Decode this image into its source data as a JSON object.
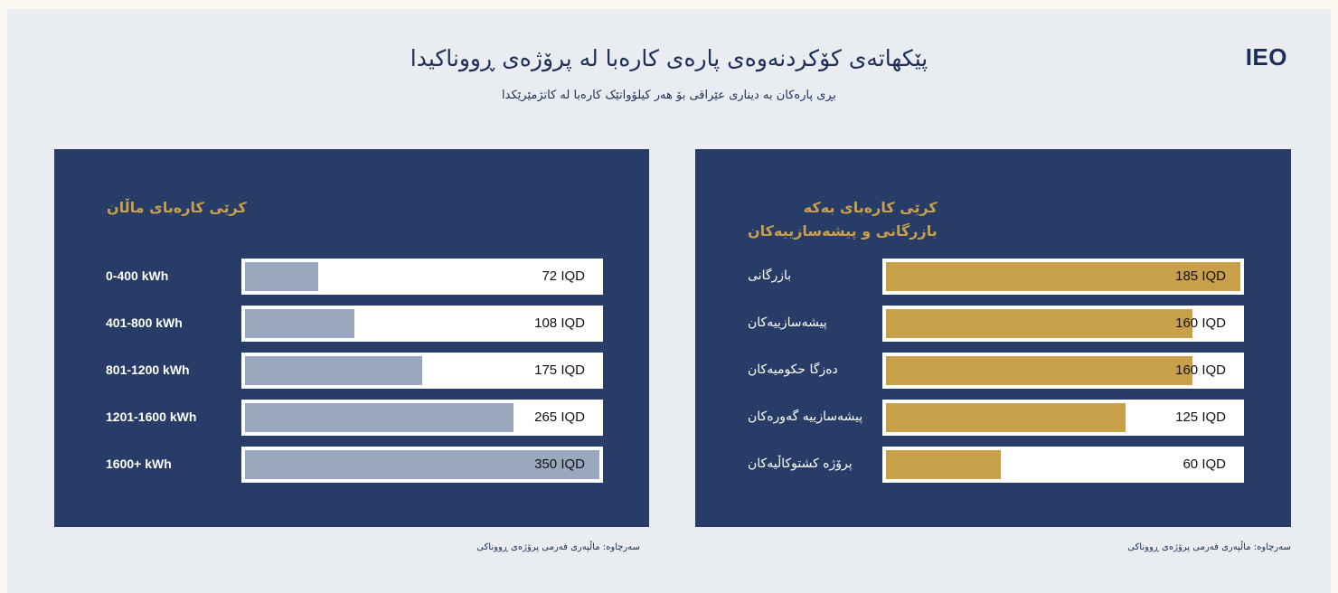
{
  "header": {
    "title": "پێکهاتەی کۆکردنەوەی پارەی کارەبا لە پرۆژەی ڕووناکیدا",
    "subtitle": "بڕی پارەکان بە دیناری عێراقی بۆ هەر کیلۆواتێک کارەبا لە کاتژمێرێکدا",
    "logo": "IEO"
  },
  "colors": {
    "panel": "#273c66",
    "household_bar": "#9aa8bd",
    "commercial_bar": "#c9a04a",
    "accent_text": "#c9a04a"
  },
  "chart_data": [
    {
      "type": "bar",
      "orientation": "horizontal",
      "title": "کرێی کارەبای ماڵان",
      "categories": [
        "0-400 kWh",
        "401-800 kWh",
        "801-1200 kWh",
        "1201-1600 kWh",
        "1600+ kWh"
      ],
      "values": [
        72,
        108,
        175,
        265,
        350
      ],
      "value_labels": [
        "72 IQD",
        "108 IQD",
        "175 IQD",
        "265 IQD",
        "350 IQD"
      ],
      "unit": "IQD",
      "xlim": [
        0,
        350
      ],
      "source": "سەرچاوە: ماڵپەری فەرمی پرۆژەی ڕووناکی"
    },
    {
      "type": "bar",
      "orientation": "horizontal",
      "title_lines": [
        "کرێی کارەبای بەکە",
        "بازرگانی و پیشەسازییەکان"
      ],
      "categories": [
        "بازرگانی",
        "پیشەسازییەکان",
        "دەزگا حکومیەکان",
        "پیشەسازییە گەورەکان",
        "پرۆژە کشتوکاڵیەکان"
      ],
      "values": [
        185,
        160,
        160,
        125,
        60
      ],
      "value_labels": [
        "185 IQD",
        "160 IQD",
        "160 IQD",
        "125 IQD",
        "60 IQD"
      ],
      "unit": "IQD",
      "xlim": [
        0,
        185
      ],
      "source": "سەرچاوە: ماڵپەری فەرمی پرۆژەی ڕووناکی"
    }
  ]
}
